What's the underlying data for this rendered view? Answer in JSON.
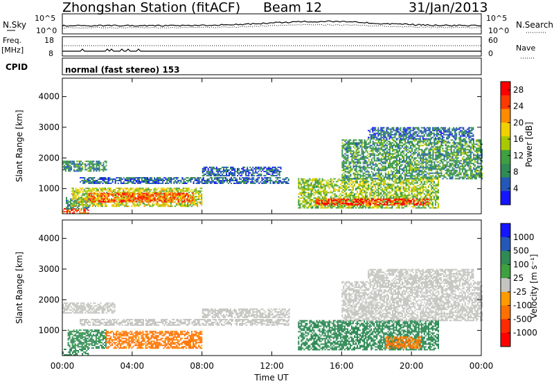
{
  "header": {
    "station": "Zhongshan Station (fitACF)",
    "beam": "Beam 12",
    "date": "31/Jan/2013"
  },
  "strip_labels": {
    "nsky": "N.Sky",
    "nsky_tick_hi": "10^5",
    "nsky_tick_lo": "10^0",
    "nsearch": "N.Search",
    "nsearch_tick_hi": "10^5",
    "nsearch_tick_lo": "10^0",
    "freq": "Freq.",
    "freq_unit": "[MHz]",
    "freq_tick_hi": "18",
    "freq_tick_lo": "8",
    "nave": "Nave",
    "nave_tick_hi": "60",
    "nave_tick_lo": "0",
    "cpid": "CPID",
    "cpid_value": "normal (fast stereo) 153"
  },
  "colors": {
    "power": [
      "#1515ff",
      "#2458b8",
      "#2f8a55",
      "#3fa040",
      "#a8c800",
      "#f0d000",
      "#ff8a00",
      "#ff3a00",
      "#ff0000"
    ],
    "velocity": [
      "#1515ff",
      "#2458b8",
      "#2f8a55",
      "#3fa040",
      "#c4c4c0",
      "#ff9a00",
      "#ff7000",
      "#ff2a00",
      "#ff0000"
    ],
    "groundscatter": "#c4c4c0"
  },
  "chart_data": [
    {
      "type": "heatmap",
      "title": "",
      "xlabel": "Time UT",
      "ylabel": "Slant Range [km]",
      "x_ticks": [
        "00:00",
        "04:00",
        "08:00",
        "12:00",
        "16:00",
        "20:00",
        "00:00"
      ],
      "xlim_hours": [
        0,
        24
      ],
      "y_ticks": [
        1000,
        2000,
        3000,
        4000
      ],
      "ylim": [
        180,
        4600
      ],
      "colorbar": {
        "label": "Power [dB]",
        "ticks": [
          4,
          8,
          12,
          16,
          20,
          24,
          28
        ],
        "range": [
          0,
          30
        ]
      },
      "regions": [
        {
          "t0": 0.0,
          "t1": 2.5,
          "r0": 1550,
          "r1": 1900,
          "value": 9
        },
        {
          "t0": 0.0,
          "t1": 1.5,
          "r0": 180,
          "r1": 320,
          "value": 24
        },
        {
          "t0": 0.2,
          "t1": 1.5,
          "r0": 320,
          "r1": 700,
          "value": 8
        },
        {
          "t0": 0.5,
          "t1": 8.0,
          "r0": 400,
          "r1": 1000,
          "value": 16
        },
        {
          "t0": 1.5,
          "t1": 7.5,
          "r0": 550,
          "r1": 850,
          "value": 24
        },
        {
          "t0": 1.0,
          "t1": 13.0,
          "r0": 1150,
          "r1": 1350,
          "value": 6
        },
        {
          "t0": 8.0,
          "t1": 12.5,
          "r0": 1400,
          "r1": 1700,
          "value": 5
        },
        {
          "t0": 13.5,
          "t1": 21.5,
          "r0": 350,
          "r1": 1300,
          "value": 14
        },
        {
          "t0": 14.5,
          "t1": 21.0,
          "r0": 450,
          "r1": 650,
          "value": 26
        },
        {
          "t0": 16.0,
          "t1": 24.0,
          "r0": 1300,
          "r1": 2600,
          "value": 10
        },
        {
          "t0": 17.5,
          "t1": 23.5,
          "r0": 2600,
          "r1": 3000,
          "value": 6
        }
      ]
    },
    {
      "type": "heatmap",
      "title": "",
      "xlabel": "Time UT",
      "ylabel": "Slant Range [km]",
      "x_ticks": [
        "00:00",
        "04:00",
        "08:00",
        "12:00",
        "16:00",
        "20:00",
        "00:00"
      ],
      "xlim_hours": [
        0,
        24
      ],
      "y_ticks": [
        1000,
        2000,
        3000,
        4000
      ],
      "ylim": [
        180,
        4600
      ],
      "colorbar": {
        "label": "Velocity [m s⁻¹]",
        "ticks": [
          "1000",
          "500",
          "100",
          "25",
          "-25",
          "-100",
          "-500",
          "-1000"
        ]
      },
      "regions": [
        {
          "t0": 0.0,
          "t1": 3.0,
          "r0": 1550,
          "r1": 1900,
          "value": "gs"
        },
        {
          "t0": 0.0,
          "t1": 1.5,
          "r0": 180,
          "r1": 400,
          "value": 200
        },
        {
          "t0": 0.3,
          "t1": 2.5,
          "r0": 400,
          "r1": 1000,
          "value": 150
        },
        {
          "t0": 2.5,
          "t1": 8.0,
          "r0": 400,
          "r1": 950,
          "value": -150
        },
        {
          "t0": 1.0,
          "t1": 13.0,
          "r0": 1150,
          "r1": 1350,
          "value": "gs"
        },
        {
          "t0": 8.0,
          "t1": 13.0,
          "r0": 1400,
          "r1": 1700,
          "value": "gs"
        },
        {
          "t0": 13.5,
          "t1": 21.5,
          "r0": 350,
          "r1": 1300,
          "value": 300
        },
        {
          "t0": 18.5,
          "t1": 20.5,
          "r0": 400,
          "r1": 800,
          "value": -150
        },
        {
          "t0": 16.0,
          "t1": 24.0,
          "r0": 1300,
          "r1": 2600,
          "value": "gs"
        },
        {
          "t0": 17.5,
          "t1": 23.5,
          "r0": 2600,
          "r1": 3000,
          "value": "gs"
        }
      ]
    }
  ]
}
